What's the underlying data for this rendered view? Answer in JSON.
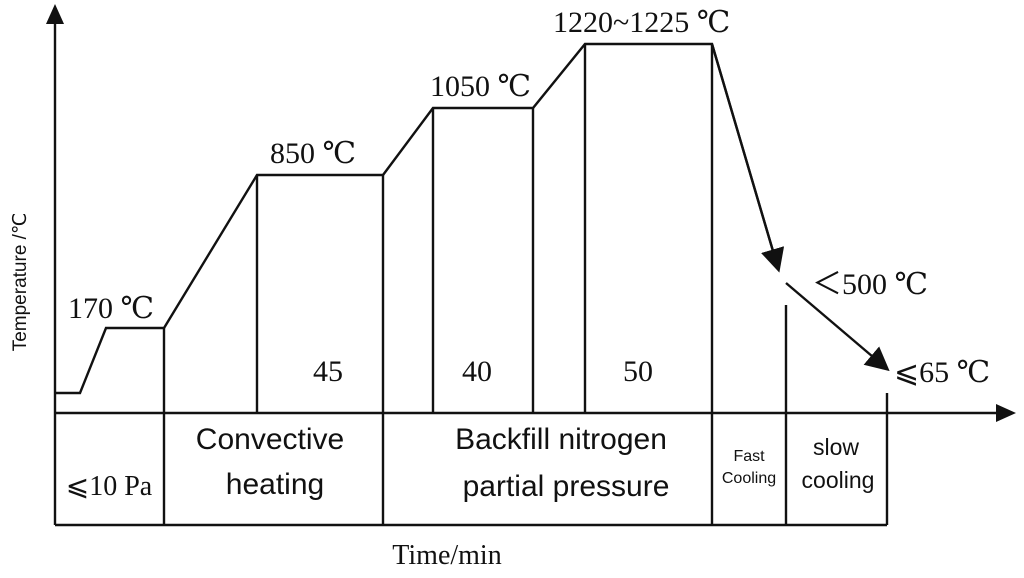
{
  "axes": {
    "y_label": "Temperature /℃",
    "x_label": "Time/min"
  },
  "temperatures": {
    "t170": "170 ℃",
    "t850": "850 ℃",
    "t1050": "1050 ℃",
    "t1220": "1220~1225 ℃",
    "t500": "＜500 ℃",
    "t65": "⩽65 ℃"
  },
  "durations": {
    "d45": "45",
    "d40": "40",
    "d50": "50"
  },
  "stages": {
    "vacuum": "⩽10 Pa",
    "convective_1": "Convective",
    "convective_2": "heating",
    "backfill_1": "Backfill nitrogen",
    "backfill_2": "partial pressure",
    "fast_1": "Fast",
    "fast_2": "Cooling",
    "slow_1": "slow",
    "slow_2": "cooling"
  }
}
